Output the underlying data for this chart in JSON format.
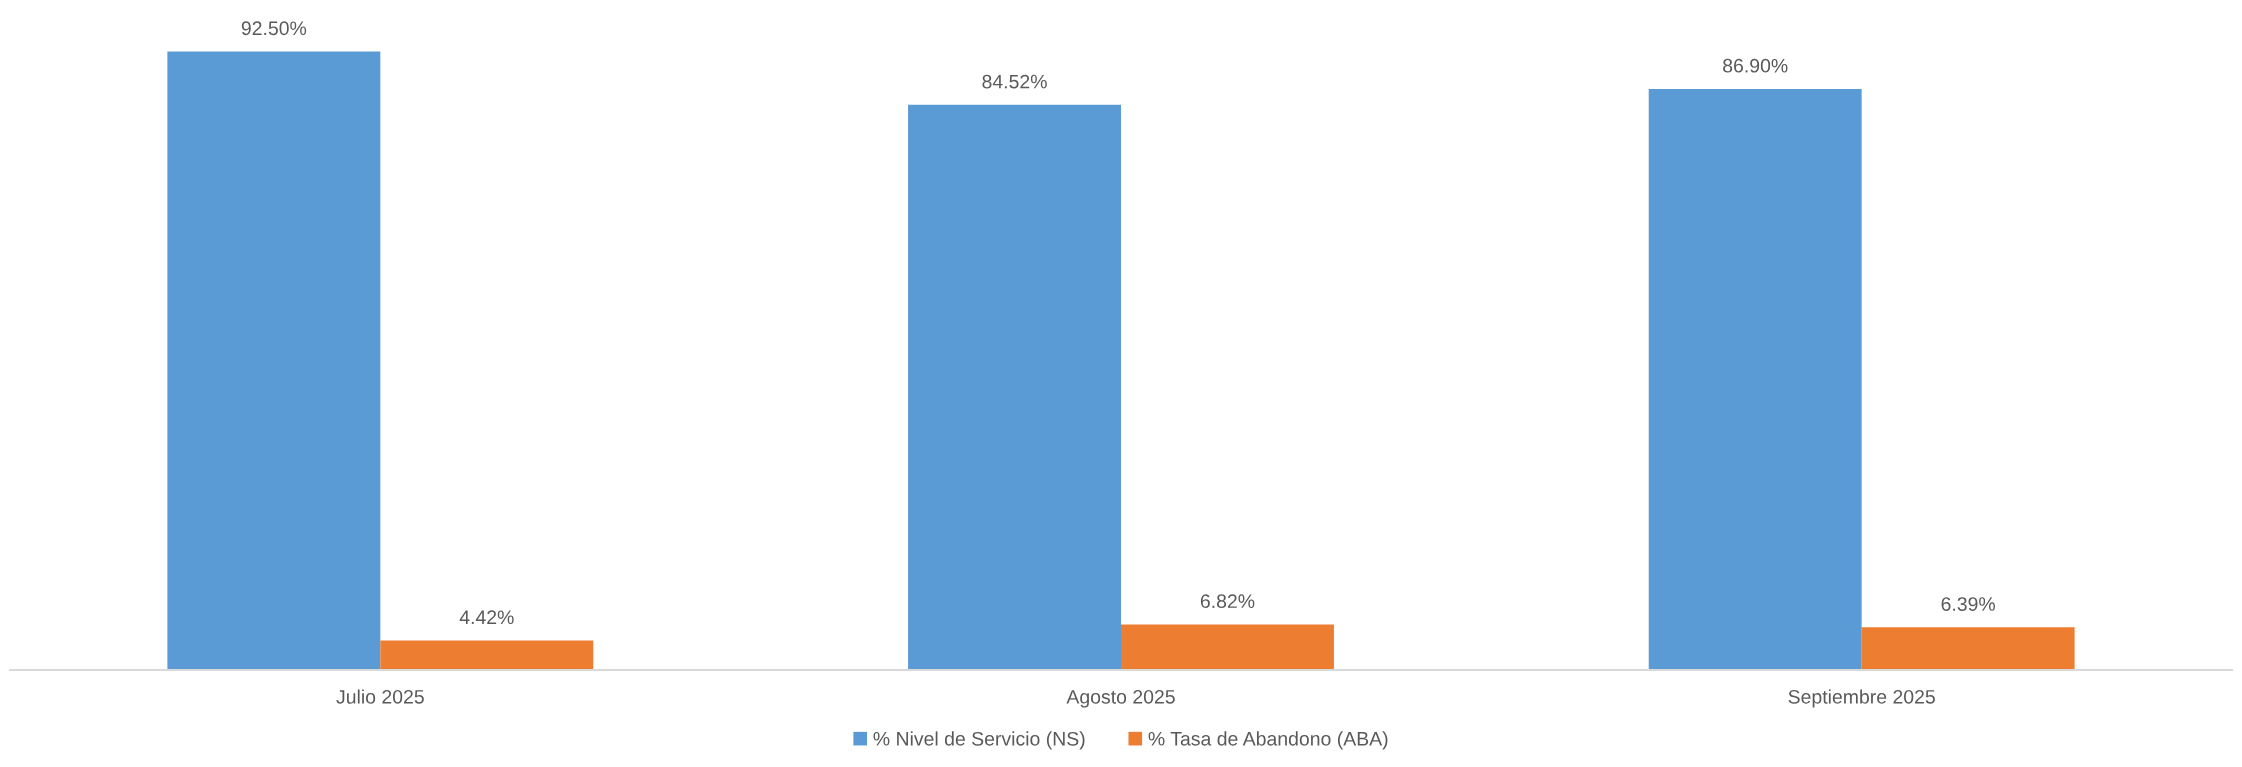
{
  "chart_data": {
    "type": "bar",
    "categories": [
      "Julio 2025",
      "Agosto 2025",
      "Septiembre 2025"
    ],
    "series": [
      {
        "name": "% Nivel de Servicio (NS)",
        "color": "#5b9bd5",
        "values": [
          92.5,
          84.52,
          86.9
        ],
        "value_labels": [
          "92.50%",
          "84.52%",
          "86.90%"
        ]
      },
      {
        "name": "% Tasa de Abandono (ABA)",
        "color": "#ed7d31",
        "values": [
          4.42,
          6.82,
          6.39
        ],
        "value_labels": [
          "4.42%",
          "6.82%",
          "6.39%"
        ]
      }
    ],
    "tick_labels": "x",
    "grid": false,
    "legend": "bottom"
  }
}
